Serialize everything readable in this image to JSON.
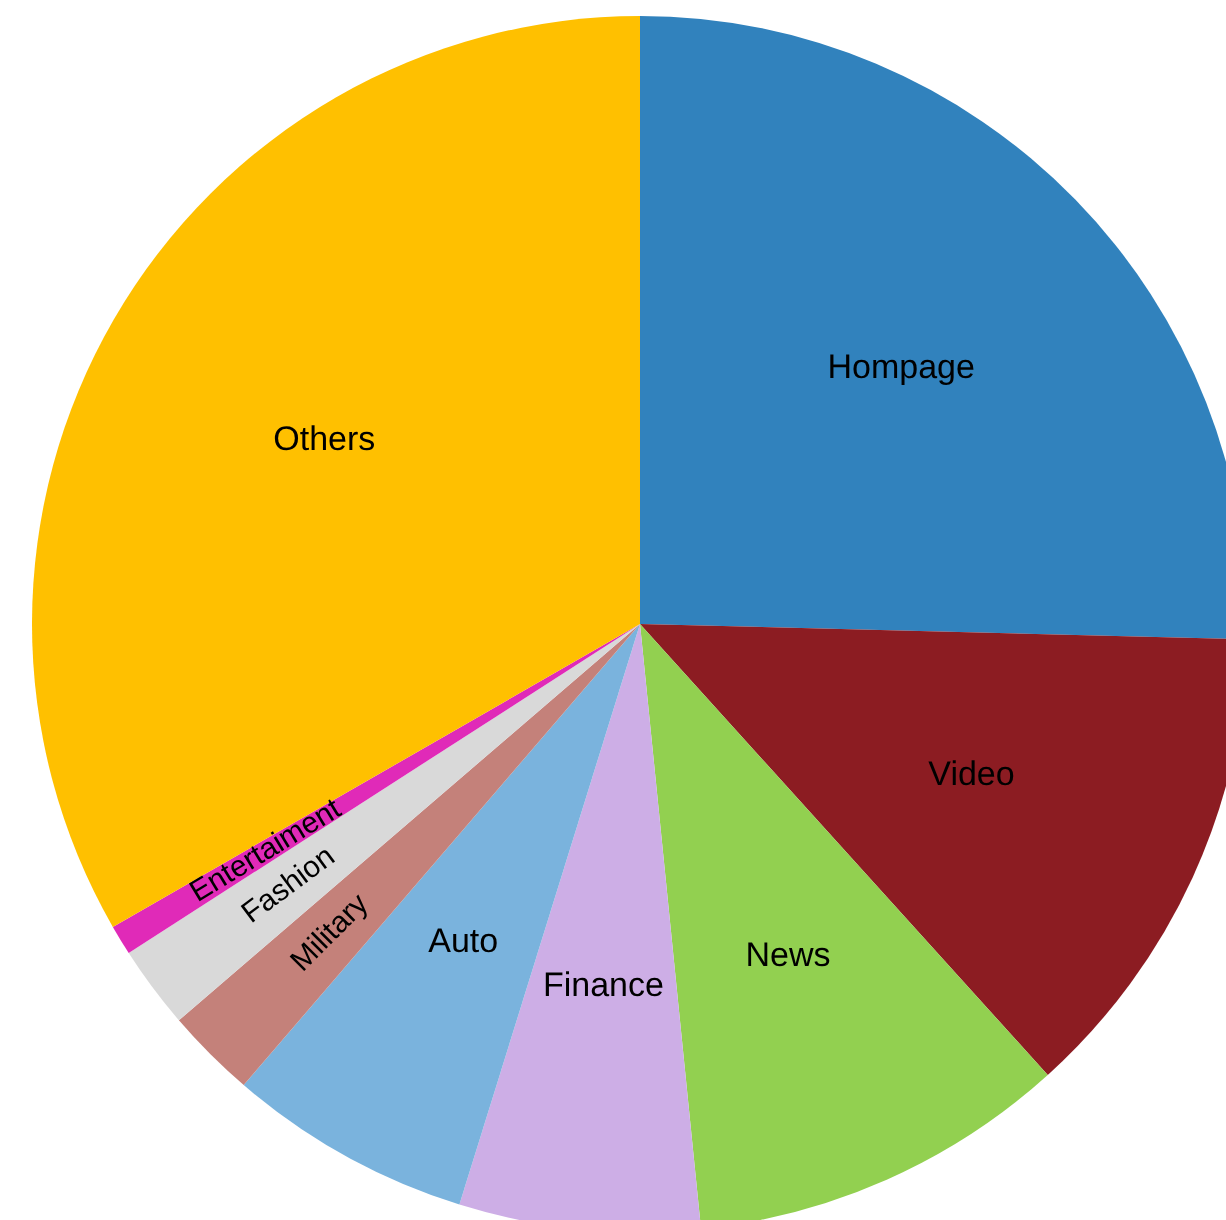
{
  "chart_data": {
    "type": "pie",
    "categories": [
      "Hompage",
      "Video",
      "News",
      "Finance",
      "Auto",
      "Military",
      "Fashion",
      "Entertaiment",
      "Others"
    ],
    "values": [
      25.4,
      12.9,
      10.1,
      6.4,
      6.5,
      2.4,
      2.2,
      0.8,
      33.3
    ],
    "colors": [
      "#3182bd",
      "#8c1c22",
      "#92d050",
      "#cdaee6",
      "#7ab3dd",
      "#c4817a",
      "#d9d9d9",
      "#e02ab8",
      "#ffc000"
    ]
  }
}
